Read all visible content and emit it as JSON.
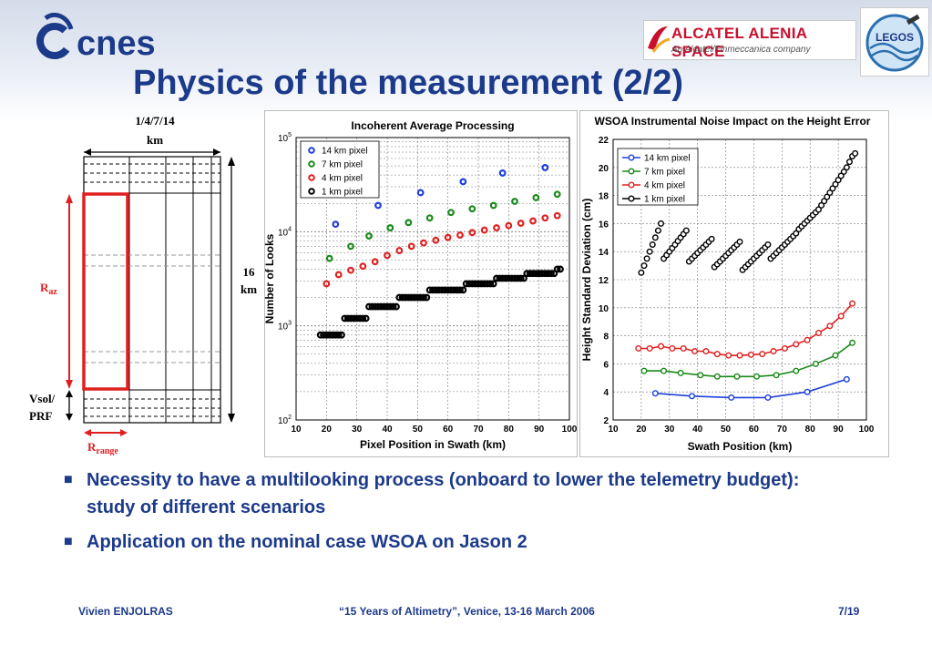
{
  "header": {
    "logo_text": "cnes",
    "partner_name": "ALCATEL ALENIA SPACE",
    "partner_tagline": "An Alcatel/Finmeccanica company",
    "legos_text": "LEGOS",
    "title": "Physics of the measurement (2/2)"
  },
  "diagram": {
    "swath_label_line1": "1/4/7/14",
    "swath_label_line2": "km",
    "height_label_line1": "16",
    "height_label_line2": "km",
    "raz_main": "R",
    "raz_sub": "az",
    "vsol_line1": "Vsol/",
    "vsol_line2": "PRF",
    "rrange_main": "R",
    "rrange_sub": "range",
    "red_color": "#e02020"
  },
  "chart_data": [
    {
      "type": "scatter",
      "title": "Incoherent Average Processing",
      "xlabel": "Pixel Position in Swath (km)",
      "ylabel": "Number of Looks",
      "xlim": [
        10,
        100
      ],
      "ylim": [
        100,
        100000
      ],
      "yscale": "log",
      "xticks": [
        10,
        20,
        30,
        40,
        50,
        60,
        70,
        80,
        90,
        100
      ],
      "yticks": [
        {
          "value": 100,
          "base": "10",
          "exp": "2"
        },
        {
          "value": 1000,
          "base": "10",
          "exp": "3"
        },
        {
          "value": 10000,
          "base": "10",
          "exp": "4"
        },
        {
          "value": 100000,
          "base": "10",
          "exp": "5"
        }
      ],
      "grid": true,
      "legend_position": "top-left",
      "series": [
        {
          "name": "14 km pixel",
          "color": "#1f3fdc",
          "x": [
            23,
            37,
            51,
            65,
            78,
            92
          ],
          "y": [
            12000,
            19000,
            26000,
            34000,
            42000,
            48000
          ]
        },
        {
          "name": "7 km pixel",
          "color": "#1a8a1a",
          "x": [
            21,
            28,
            34,
            41,
            47,
            54,
            61,
            68,
            75,
            82,
            89,
            96
          ],
          "y": [
            5200,
            7000,
            9000,
            11000,
            12500,
            14000,
            16000,
            17500,
            19000,
            21000,
            23000,
            25000
          ]
        },
        {
          "name": "4 km pixel",
          "color": "#e02020",
          "x": [
            20,
            24,
            28,
            32,
            36,
            40,
            44,
            48,
            52,
            56,
            60,
            64,
            68,
            72,
            76,
            80,
            84,
            88,
            92,
            96
          ],
          "y": [
            2800,
            3500,
            3900,
            4300,
            4800,
            5600,
            6300,
            7000,
            7600,
            8100,
            8700,
            9200,
            9800,
            10400,
            11000,
            11600,
            12300,
            13000,
            14000,
            14800
          ]
        },
        {
          "name": "1 km pixel",
          "color": "#000000",
          "x": [
            18,
            19,
            20,
            21,
            22,
            23,
            24,
            25,
            26,
            27,
            28,
            29,
            30,
            31,
            32,
            33,
            34,
            35,
            36,
            37,
            38,
            39,
            40,
            41,
            42,
            43,
            44,
            45,
            46,
            47,
            48,
            49,
            50,
            51,
            52,
            53,
            54,
            55,
            56,
            57,
            58,
            59,
            60,
            61,
            62,
            63,
            64,
            65,
            66,
            67,
            68,
            69,
            70,
            71,
            72,
            73,
            74,
            75,
            76,
            77,
            78,
            79,
            80,
            81,
            82,
            83,
            84,
            85,
            86,
            87,
            88,
            89,
            90,
            91,
            92,
            93,
            94,
            95,
            96,
            97
          ],
          "y": [
            800,
            800,
            800,
            800,
            800,
            800,
            800,
            800,
            1200,
            1200,
            1200,
            1200,
            1200,
            1200,
            1200,
            1200,
            1600,
            1600,
            1600,
            1600,
            1600,
            1600,
            1600,
            1600,
            1600,
            1600,
            2000,
            2000,
            2000,
            2000,
            2000,
            2000,
            2000,
            2000,
            2000,
            2000,
            2400,
            2400,
            2400,
            2400,
            2400,
            2400,
            2400,
            2400,
            2400,
            2400,
            2400,
            2400,
            2800,
            2800,
            2800,
            2800,
            2800,
            2800,
            2800,
            2800,
            2800,
            2800,
            3200,
            3200,
            3200,
            3200,
            3200,
            3200,
            3200,
            3200,
            3200,
            3200,
            3600,
            3600,
            3600,
            3600,
            3600,
            3600,
            3600,
            3600,
            3600,
            3600,
            4000,
            4000
          ]
        }
      ]
    },
    {
      "type": "line",
      "title": "WSOA Instrumental Noise Impact on the Height Error",
      "xlabel": "Swath Position (km)",
      "ylabel": "Height Standard Deviation (cm)",
      "xlim": [
        10,
        100
      ],
      "ylim": [
        2,
        22
      ],
      "xticks": [
        10,
        20,
        30,
        40,
        50,
        60,
        70,
        80,
        90,
        100
      ],
      "yticks": [
        2,
        4,
        6,
        8,
        10,
        12,
        14,
        16,
        18,
        20,
        22
      ],
      "grid": true,
      "legend_position": "top-left",
      "series": [
        {
          "name": "14 km pixel",
          "color": "#1f3fdc",
          "x": [
            25,
            38,
            52,
            65,
            79,
            93
          ],
          "y": [
            3.9,
            3.7,
            3.6,
            3.6,
            4.0,
            4.9
          ]
        },
        {
          "name": "7 km pixel",
          "color": "#1a8a1a",
          "x": [
            21,
            28,
            34,
            41,
            47,
            54,
            61,
            68,
            75,
            82,
            89,
            95
          ],
          "y": [
            5.5,
            5.5,
            5.35,
            5.2,
            5.1,
            5.1,
            5.1,
            5.2,
            5.5,
            6.0,
            6.6,
            7.5
          ]
        },
        {
          "name": "4 km pixel",
          "color": "#e02020",
          "x": [
            19,
            23,
            27,
            31,
            35,
            39,
            43,
            47,
            51,
            55,
            59,
            63,
            67,
            71,
            75,
            79,
            83,
            87,
            91,
            95
          ],
          "y": [
            7.1,
            7.1,
            7.25,
            7.1,
            7.1,
            6.9,
            6.9,
            6.7,
            6.6,
            6.6,
            6.65,
            6.7,
            6.9,
            7.1,
            7.4,
            7.7,
            8.2,
            8.7,
            9.4,
            10.3
          ]
        },
        {
          "name": "1 km pixel",
          "color": "#000000",
          "x": [
            20,
            21,
            22,
            23,
            24,
            25,
            26,
            27,
            28,
            29,
            30,
            31,
            32,
            33,
            34,
            35,
            36,
            37,
            38,
            39,
            40,
            41,
            42,
            43,
            44,
            45,
            46,
            47,
            48,
            49,
            50,
            51,
            52,
            53,
            54,
            55,
            56,
            57,
            58,
            59,
            60,
            61,
            62,
            63,
            64,
            65,
            66,
            67,
            68,
            69,
            70,
            71,
            72,
            73,
            74,
            75,
            76,
            77,
            78,
            79,
            80,
            81,
            82,
            83,
            84,
            85,
            86,
            87,
            88,
            89,
            90,
            91,
            92,
            93,
            94,
            95,
            96
          ],
          "y": [
            12.5,
            13.0,
            13.5,
            14.0,
            14.5,
            15.0,
            15.5,
            16.0,
            13.5,
            13.75,
            14.0,
            14.25,
            14.5,
            14.75,
            15.0,
            15.25,
            15.5,
            13.3,
            13.5,
            13.7,
            13.9,
            14.1,
            14.3,
            14.5,
            14.7,
            14.9,
            12.9,
            13.1,
            13.3,
            13.5,
            13.7,
            13.9,
            14.1,
            14.3,
            14.5,
            14.7,
            12.7,
            12.9,
            13.1,
            13.3,
            13.5,
            13.7,
            13.9,
            14.1,
            14.3,
            14.5,
            13.5,
            13.7,
            13.9,
            14.1,
            14.3,
            14.5,
            14.7,
            14.9,
            15.1,
            15.3,
            15.6,
            15.8,
            16.0,
            16.2,
            16.4,
            16.6,
            16.8,
            17.0,
            17.3,
            17.6,
            17.9,
            18.2,
            18.5,
            18.8,
            19.1,
            19.4,
            19.7,
            20.0,
            20.4,
            20.8,
            21.0
          ]
        }
      ]
    }
  ],
  "bullets": [
    "Necessity to have a multilooking process (onboard to lower the telemetry budget): study of different scenarios",
    "Application on the nominal case WSOA on Jason 2"
  ],
  "bullet_symbol": "■",
  "footer": {
    "author": "Vivien ENJOLRAS",
    "event": "“15 Years of Altimetry”, Venice, 13-16 March 2006",
    "page": "7/19"
  },
  "colors": {
    "title_blue": "#1c3a8a",
    "alcatel_red": "#c8102e"
  }
}
